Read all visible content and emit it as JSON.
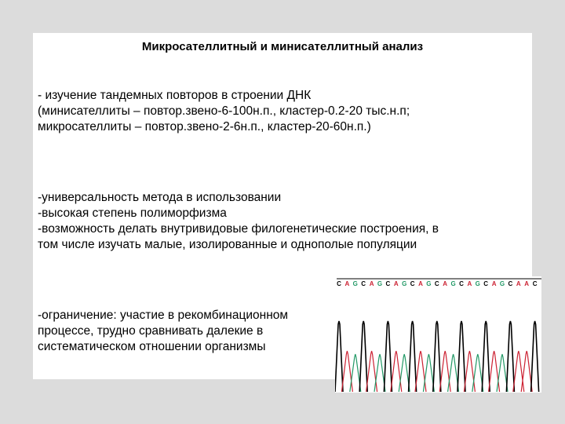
{
  "slide": {
    "title": "Микросателлитный и минисателлитный анализ",
    "block1": [
      "- изучение тандемных повторов в строении ДНК",
      "(минисателлиты – повтор.звено-6-100н.п., кластер-0.2-20 тыс.н.п;",
      "микросателлиты – повтор.звено-2-6н.п., кластер-20-60н.п.)"
    ],
    "block2": [
      "-универсальность метода в использовании",
      "-высокая степень полиморфизма",
      "-возможность делать внутривидовые филогенетические построения, в",
      "том числе изучать малые, изолированные и однополые популяции"
    ],
    "block3": [
      "-ограничение: участие в рекомбинационном",
      "процессе, трудно сравнивать далекие в",
      "систематическом отношении организмы"
    ]
  },
  "chromatogram": {
    "sequence": "CAGCAGCAGCAGCAGCAGCAGCAAC",
    "colors": {
      "C": "#000000",
      "A": "#cc2233",
      "G": "#229966"
    }
  }
}
